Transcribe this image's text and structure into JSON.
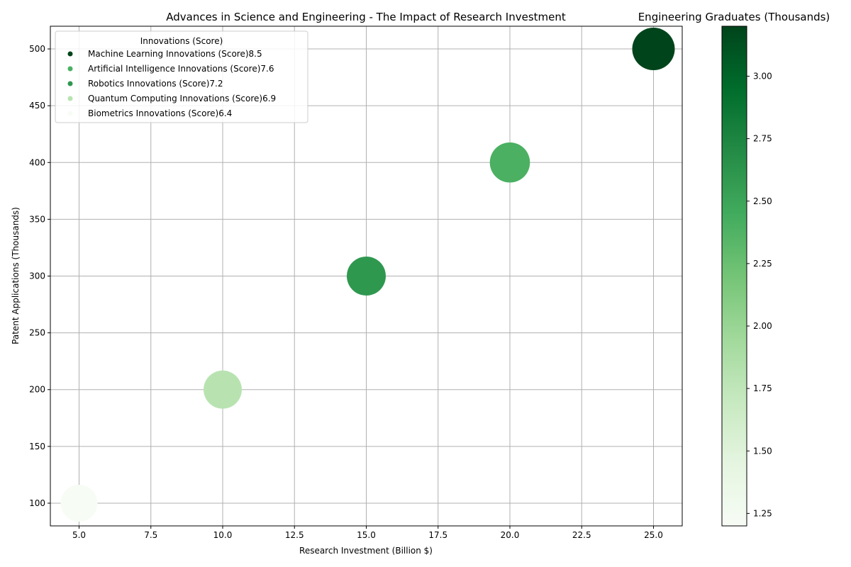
{
  "chart_data": {
    "type": "scatter",
    "title": "Advances in Science and Engineering - The Impact of Research Investment",
    "xlabel": "Research Investment (Billion $)",
    "ylabel": "Patent Applications (Thousands)",
    "xlim": [
      4.0,
      26.0
    ],
    "ylim": [
      80,
      520
    ],
    "xticks": [
      "5.0",
      "7.5",
      "10.0",
      "12.5",
      "15.0",
      "17.5",
      "20.0",
      "22.5",
      "25.0"
    ],
    "yticks": [
      "100",
      "150",
      "200",
      "250",
      "300",
      "350",
      "400",
      "450",
      "500"
    ],
    "grid": true,
    "legend": {
      "title": "Innovations (Score)",
      "placement": "top-left",
      "entries": [
        "Machine Learning Innovations (Score)8.5",
        "Artificial Intelligence Innovations (Score)7.6",
        "Robotics Innovations (Score)7.2",
        "Quantum Computing Innovations (Score)6.9",
        "Biometrics Innovations (Score)6.4"
      ]
    },
    "colorbar": {
      "title": "Engineering Graduates (Thousands)",
      "min": 1.2,
      "max": 3.2,
      "ticks": [
        "1.25",
        "1.50",
        "1.75",
        "2.00",
        "2.25",
        "2.50",
        "2.75",
        "3.00"
      ],
      "colormap": "Greens"
    },
    "points": [
      {
        "x": 5,
        "y": 100,
        "graduates": 1.2,
        "score": 6.4
      },
      {
        "x": 10,
        "y": 200,
        "graduates": 1.8,
        "score": 6.9
      },
      {
        "x": 15,
        "y": 300,
        "graduates": 2.6,
        "score": 7.2
      },
      {
        "x": 20,
        "y": 400,
        "graduates": 2.4,
        "score": 7.6
      },
      {
        "x": 25,
        "y": 500,
        "graduates": 3.2,
        "score": 8.5
      }
    ]
  }
}
